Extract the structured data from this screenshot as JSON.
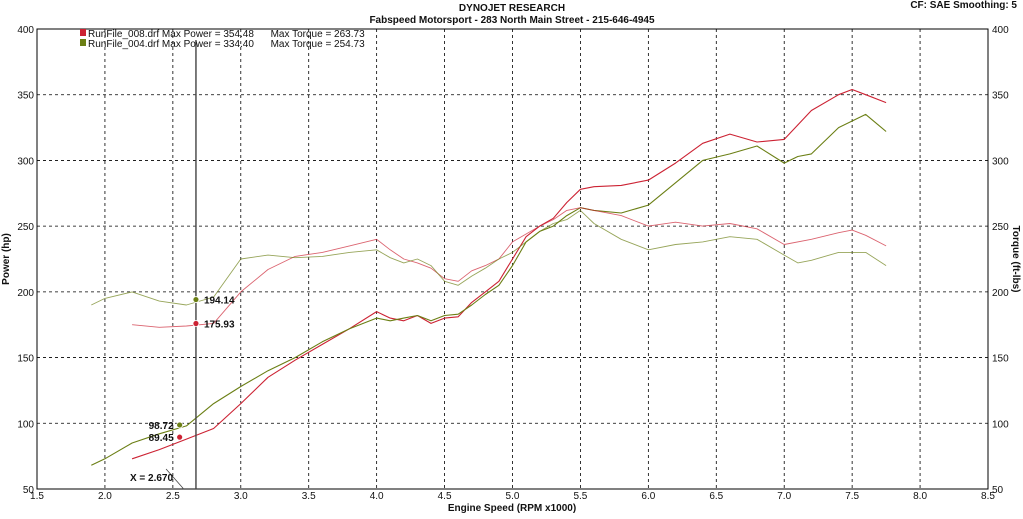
{
  "header": {
    "company": "DYNOJET RESEARCH",
    "shop": "Fabspeed Motorsport - 283 North Main Street - 215-646-4945",
    "settings": "CF: SAE  Smoothing: 5"
  },
  "colors": {
    "run1": "#cc2233",
    "run2": "#6b7f14"
  },
  "legend": [
    {
      "file": "RunFile_008.drf",
      "text": "RunFile_008.drf Max Power = 354.48      Max Torque = 263.73"
    },
    {
      "file": "RunFile_004.drf",
      "text": "RunFile_004.drf Max Power = 334.40      Max Torque = 254.73"
    }
  ],
  "cursor": {
    "label": "X = 2.670",
    "x": 2.67
  },
  "markers": [
    {
      "label": "194.14",
      "x": 2.67,
      "y": 194.14,
      "series": "RunFile_004.drf",
      "kind": "torque"
    },
    {
      "label": "175.93",
      "x": 2.67,
      "y": 175.93,
      "series": "RunFile_008.drf",
      "kind": "torque"
    },
    {
      "label": "98.72",
      "x": 2.55,
      "y": 98.72,
      "series": "RunFile_004.drf",
      "kind": "power"
    },
    {
      "label": "89.45",
      "x": 2.55,
      "y": 89.45,
      "series": "RunFile_008.drf",
      "kind": "power"
    }
  ],
  "chart_data": {
    "type": "line",
    "title": "",
    "xlabel": "Engine Speed (RPM x1000)",
    "ylabel_left": "Power (hp)",
    "ylabel_right": "Torque (ft-lbs)",
    "xlim": [
      1.5,
      8.5
    ],
    "ylim": [
      50,
      400
    ],
    "x_ticks": [
      "1.5",
      "2.0",
      "2.5",
      "3.0",
      "3.5",
      "4.0",
      "4.5",
      "5.0",
      "5.5",
      "6.0",
      "6.5",
      "7.0",
      "7.5",
      "8.0",
      "8.5"
    ],
    "y_ticks": [
      "50",
      "100",
      "150",
      "200",
      "250",
      "300",
      "350",
      "400"
    ],
    "grid": true,
    "legend_position": "top-left",
    "series": [
      {
        "name": "RunFile_008.drf Power",
        "run": "RunFile_008.drf",
        "kind": "power",
        "x": [
          2.2,
          2.4,
          2.6,
          2.8,
          3.0,
          3.2,
          3.4,
          3.6,
          3.8,
          4.0,
          4.1,
          4.2,
          4.3,
          4.4,
          4.5,
          4.6,
          4.7,
          4.8,
          4.9,
          5.0,
          5.1,
          5.2,
          5.3,
          5.4,
          5.5,
          5.6,
          5.8,
          6.0,
          6.2,
          6.4,
          6.6,
          6.8,
          7.0,
          7.2,
          7.4,
          7.5,
          7.6,
          7.75
        ],
        "y": [
          73,
          80,
          88,
          96,
          115,
          135,
          148,
          160,
          172,
          185,
          180,
          178,
          182,
          176,
          180,
          181,
          192,
          200,
          208,
          225,
          242,
          250,
          256,
          268,
          278,
          280,
          281,
          285,
          298,
          313,
          320,
          314,
          316,
          338,
          350,
          354,
          350,
          344
        ]
      },
      {
        "name": "RunFile_004.drf Power",
        "run": "RunFile_004.drf",
        "kind": "power",
        "x": [
          1.9,
          2.0,
          2.2,
          2.4,
          2.6,
          2.8,
          3.0,
          3.2,
          3.4,
          3.6,
          3.8,
          4.0,
          4.1,
          4.2,
          4.3,
          4.4,
          4.5,
          4.6,
          4.7,
          4.8,
          4.9,
          5.0,
          5.1,
          5.2,
          5.3,
          5.4,
          5.5,
          5.6,
          5.8,
          6.0,
          6.2,
          6.4,
          6.6,
          6.8,
          7.0,
          7.1,
          7.2,
          7.4,
          7.6,
          7.75
        ],
        "y": [
          68,
          73,
          85,
          92,
          98,
          115,
          128,
          140,
          150,
          162,
          172,
          180,
          178,
          180,
          182,
          178,
          182,
          183,
          190,
          198,
          205,
          220,
          238,
          246,
          250,
          258,
          264,
          262,
          260,
          266,
          283,
          300,
          305,
          311,
          298,
          303,
          305,
          325,
          335,
          322
        ]
      },
      {
        "name": "RunFile_008.drf Torque",
        "run": "RunFile_008.drf",
        "kind": "torque",
        "x": [
          2.2,
          2.4,
          2.6,
          2.8,
          3.0,
          3.2,
          3.4,
          3.6,
          3.8,
          4.0,
          4.1,
          4.2,
          4.3,
          4.4,
          4.5,
          4.6,
          4.7,
          4.8,
          4.9,
          5.0,
          5.1,
          5.2,
          5.3,
          5.4,
          5.5,
          5.6,
          5.8,
          6.0,
          6.2,
          6.4,
          6.6,
          6.8,
          7.0,
          7.2,
          7.4,
          7.5,
          7.6,
          7.75
        ],
        "y": [
          175,
          173,
          174,
          176,
          200,
          217,
          227,
          230,
          235,
          240,
          232,
          225,
          222,
          218,
          210,
          208,
          216,
          220,
          225,
          238,
          244,
          250,
          255,
          262,
          264,
          262,
          258,
          250,
          253,
          250,
          252,
          248,
          236,
          240,
          245,
          247,
          243,
          235
        ]
      },
      {
        "name": "RunFile_004.drf Torque",
        "run": "RunFile_004.drf",
        "kind": "torque",
        "x": [
          1.9,
          2.0,
          2.2,
          2.4,
          2.6,
          2.8,
          3.0,
          3.2,
          3.4,
          3.6,
          3.8,
          4.0,
          4.1,
          4.2,
          4.3,
          4.4,
          4.5,
          4.6,
          4.7,
          4.8,
          4.9,
          5.0,
          5.1,
          5.2,
          5.3,
          5.4,
          5.5,
          5.6,
          5.8,
          6.0,
          6.2,
          6.4,
          6.6,
          6.8,
          7.0,
          7.1,
          7.2,
          7.4,
          7.6,
          7.75
        ],
        "y": [
          190,
          195,
          200,
          193,
          190,
          196,
          225,
          228,
          226,
          227,
          230,
          232,
          226,
          222,
          225,
          220,
          208,
          205,
          212,
          218,
          225,
          230,
          238,
          246,
          252,
          255,
          262,
          252,
          240,
          232,
          236,
          238,
          242,
          240,
          228,
          222,
          224,
          230,
          230,
          220
        ]
      }
    ]
  }
}
